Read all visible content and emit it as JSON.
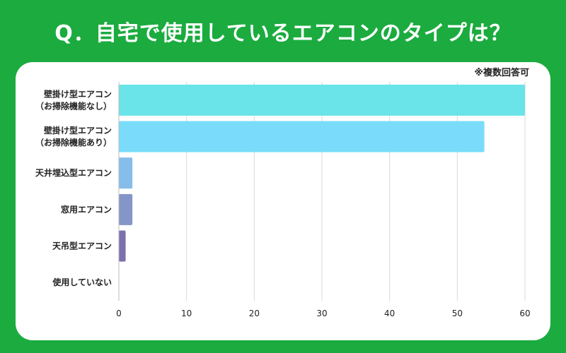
{
  "title": "Q．自宅で使用しているエアコンのタイプは？",
  "note": "※複数回答可",
  "chart_data": {
    "type": "bar",
    "orientation": "horizontal",
    "categories": [
      [
        "壁掛け型エアコン",
        "（お掃除機能なし）"
      ],
      [
        "壁掛け型エアコン",
        "（お掃除機能あり）"
      ],
      [
        "天井埋込型エアコン"
      ],
      [
        "窓用エアコン"
      ],
      [
        "天吊型エアコン"
      ],
      [
        "使用していない"
      ]
    ],
    "values": [
      60,
      54,
      2,
      2,
      1,
      0
    ],
    "colors": [
      "#6ae4e8",
      "#7adcfa",
      "#86bdea",
      "#8495c8",
      "#7d6fae",
      "#7d6fae"
    ],
    "xlim": [
      0,
      60
    ],
    "xticks": [
      0,
      10,
      20,
      30,
      40,
      50,
      60
    ],
    "grid": true
  }
}
